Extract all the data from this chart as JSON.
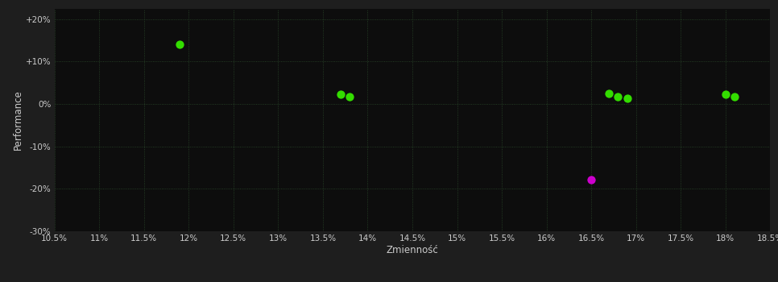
{
  "background_color": "#1e1e1e",
  "plot_bg_color": "#0d0d0d",
  "grid_color": "#2a4a2a",
  "text_color": "#cccccc",
  "xlabel": "Zmienność",
  "ylabel": "Performance",
  "xlim": [
    0.105,
    0.185
  ],
  "ylim": [
    -0.3,
    0.225
  ],
  "xtick_values": [
    0.105,
    0.11,
    0.115,
    0.12,
    0.125,
    0.13,
    0.135,
    0.14,
    0.145,
    0.15,
    0.155,
    0.16,
    0.165,
    0.17,
    0.175,
    0.18,
    0.185
  ],
  "ytick_values": [
    -0.3,
    -0.2,
    -0.1,
    0.0,
    0.1,
    0.2
  ],
  "ytick_labels": [
    "-30%",
    "-20%",
    "-10%",
    "0%",
    "+10%",
    "+20%"
  ],
  "green_points": [
    [
      0.119,
      0.14
    ],
    [
      0.137,
      0.022
    ],
    [
      0.138,
      0.018
    ],
    [
      0.167,
      0.025
    ],
    [
      0.168,
      0.018
    ],
    [
      0.169,
      0.013
    ],
    [
      0.18,
      0.022
    ],
    [
      0.181,
      0.017
    ]
  ],
  "magenta_points": [
    [
      0.165,
      -0.178
    ]
  ],
  "green_color": "#33dd00",
  "magenta_color": "#cc00cc",
  "marker_size": 55
}
